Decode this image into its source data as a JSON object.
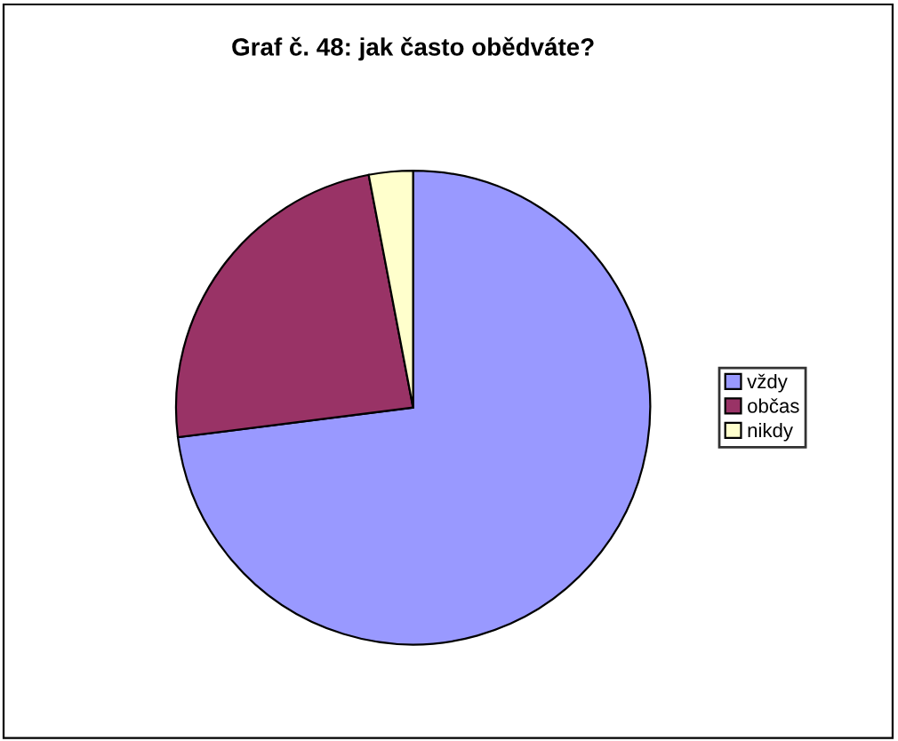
{
  "chart_data": {
    "type": "pie",
    "title": "Graf č. 48: jak často obědváte?",
    "categories": [
      "vždy",
      "občas",
      "nikdy"
    ],
    "values": [
      73,
      24,
      3
    ],
    "colors": [
      "#9999ff",
      "#993366",
      "#ffffcc"
    ],
    "legend": "right"
  }
}
